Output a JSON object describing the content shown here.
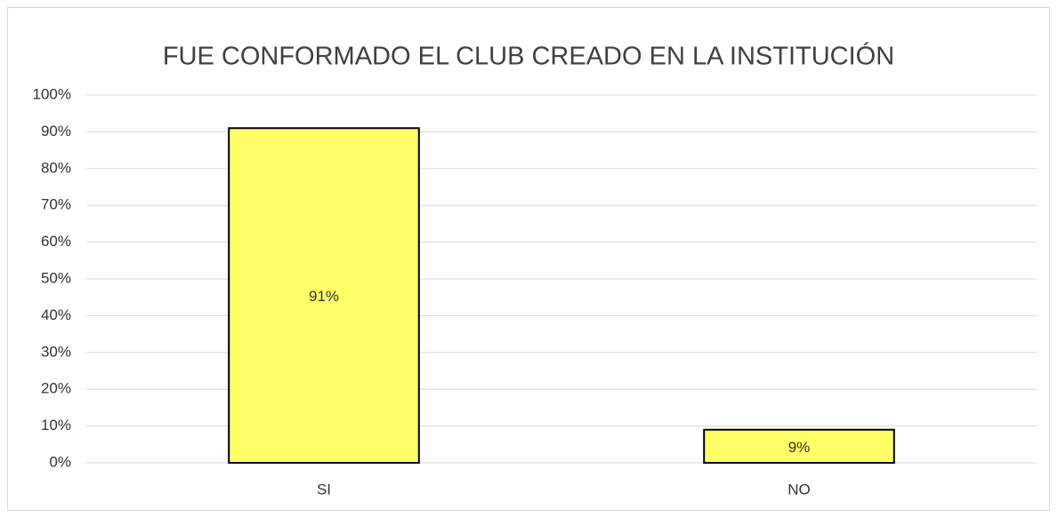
{
  "chart_data": {
    "type": "bar",
    "title": "FUE CONFORMADO EL CLUB CREADO EN LA INSTITUCIÓN",
    "categories": [
      "SI",
      "NO"
    ],
    "values": [
      91,
      9
    ],
    "value_labels": [
      "91%",
      "9%"
    ],
    "color": "#ffff66",
    "ylim": [
      0,
      100
    ],
    "yticks": [
      {
        "value": 0,
        "label": "0%"
      },
      {
        "value": 10,
        "label": "10%"
      },
      {
        "value": 20,
        "label": "20%"
      },
      {
        "value": 30,
        "label": "30%"
      },
      {
        "value": 40,
        "label": "40%"
      },
      {
        "value": 50,
        "label": "50%"
      },
      {
        "value": 60,
        "label": "60%"
      },
      {
        "value": 70,
        "label": "70%"
      },
      {
        "value": 80,
        "label": "80%"
      },
      {
        "value": 90,
        "label": "90%"
      },
      {
        "value": 100,
        "label": "100%"
      }
    ],
    "grid": true
  }
}
